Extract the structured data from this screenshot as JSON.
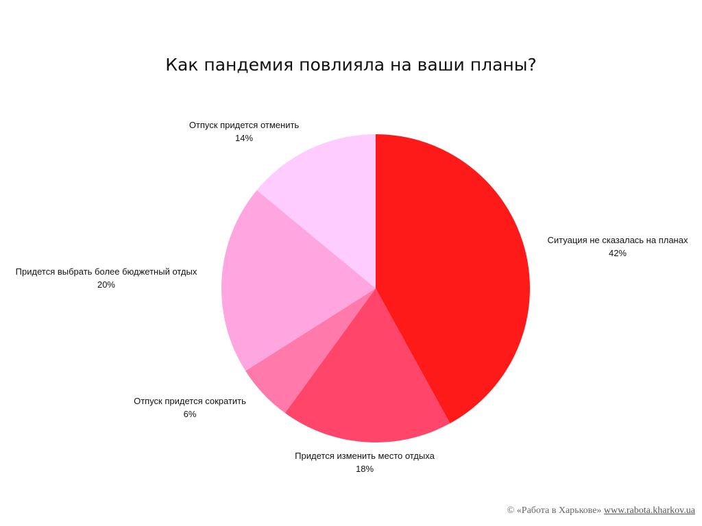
{
  "chart_data": {
    "type": "pie",
    "title": "Как пандемия повлияла на ваши планы?",
    "slices": [
      {
        "label": "Ситуация не сказалась на планах",
        "value": 42,
        "value_label": "42%",
        "color": "#ff1a1a"
      },
      {
        "label": "Придется изменить место отдыха",
        "value": 18,
        "value_label": "18%",
        "color": "#ff4569"
      },
      {
        "label": "Отпуск придется сократить",
        "value": 6,
        "value_label": "6%",
        "color": "#ff7aaa"
      },
      {
        "label": "Придется выбрать более бюджетный отдых",
        "value": 20,
        "value_label": "20%",
        "color": "#ffa6e0"
      },
      {
        "label": "Отпуск придется отменить",
        "value": 14,
        "value_label": "14%",
        "color": "#ffccff"
      }
    ]
  },
  "footer": {
    "copyright": "© «Работа в Харькове»",
    "link": "www.rabota.kharkov.ua"
  }
}
